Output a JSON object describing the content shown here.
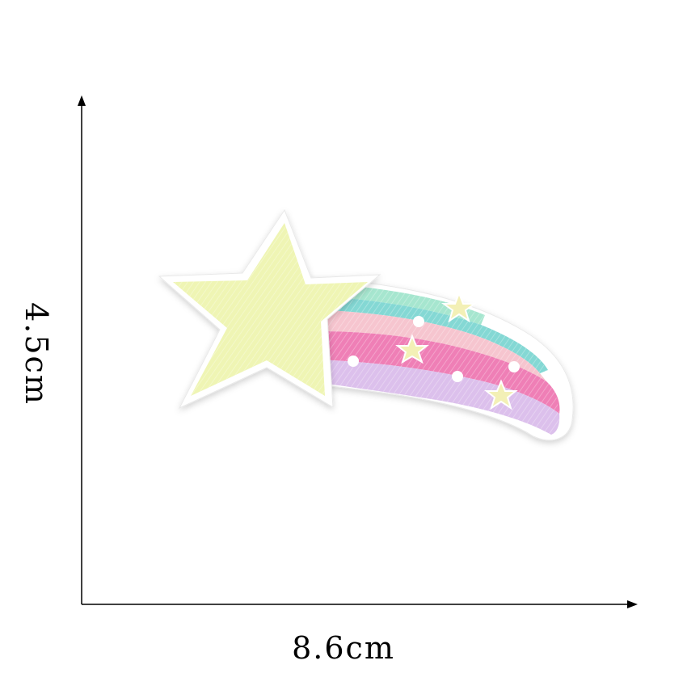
{
  "dimensions": {
    "width_label": "8.6cm",
    "height_label": "4.5cm"
  },
  "colors": {
    "background": "#ffffff",
    "axis": "#000000",
    "star_fill": "#eff5b4",
    "patch_border": "#ffffff",
    "stripe_green": "#a6e6cf",
    "stripe_teal": "#84d8d4",
    "stripe_peach": "#f6c5cf",
    "stripe_pink": "#ef7fb6",
    "stripe_lilac": "#dcc0ec",
    "mini_star": "#f3f0b6"
  },
  "image": {
    "subject": "shooting-star-embroidered-patch",
    "icon": "shooting-star-icon"
  }
}
